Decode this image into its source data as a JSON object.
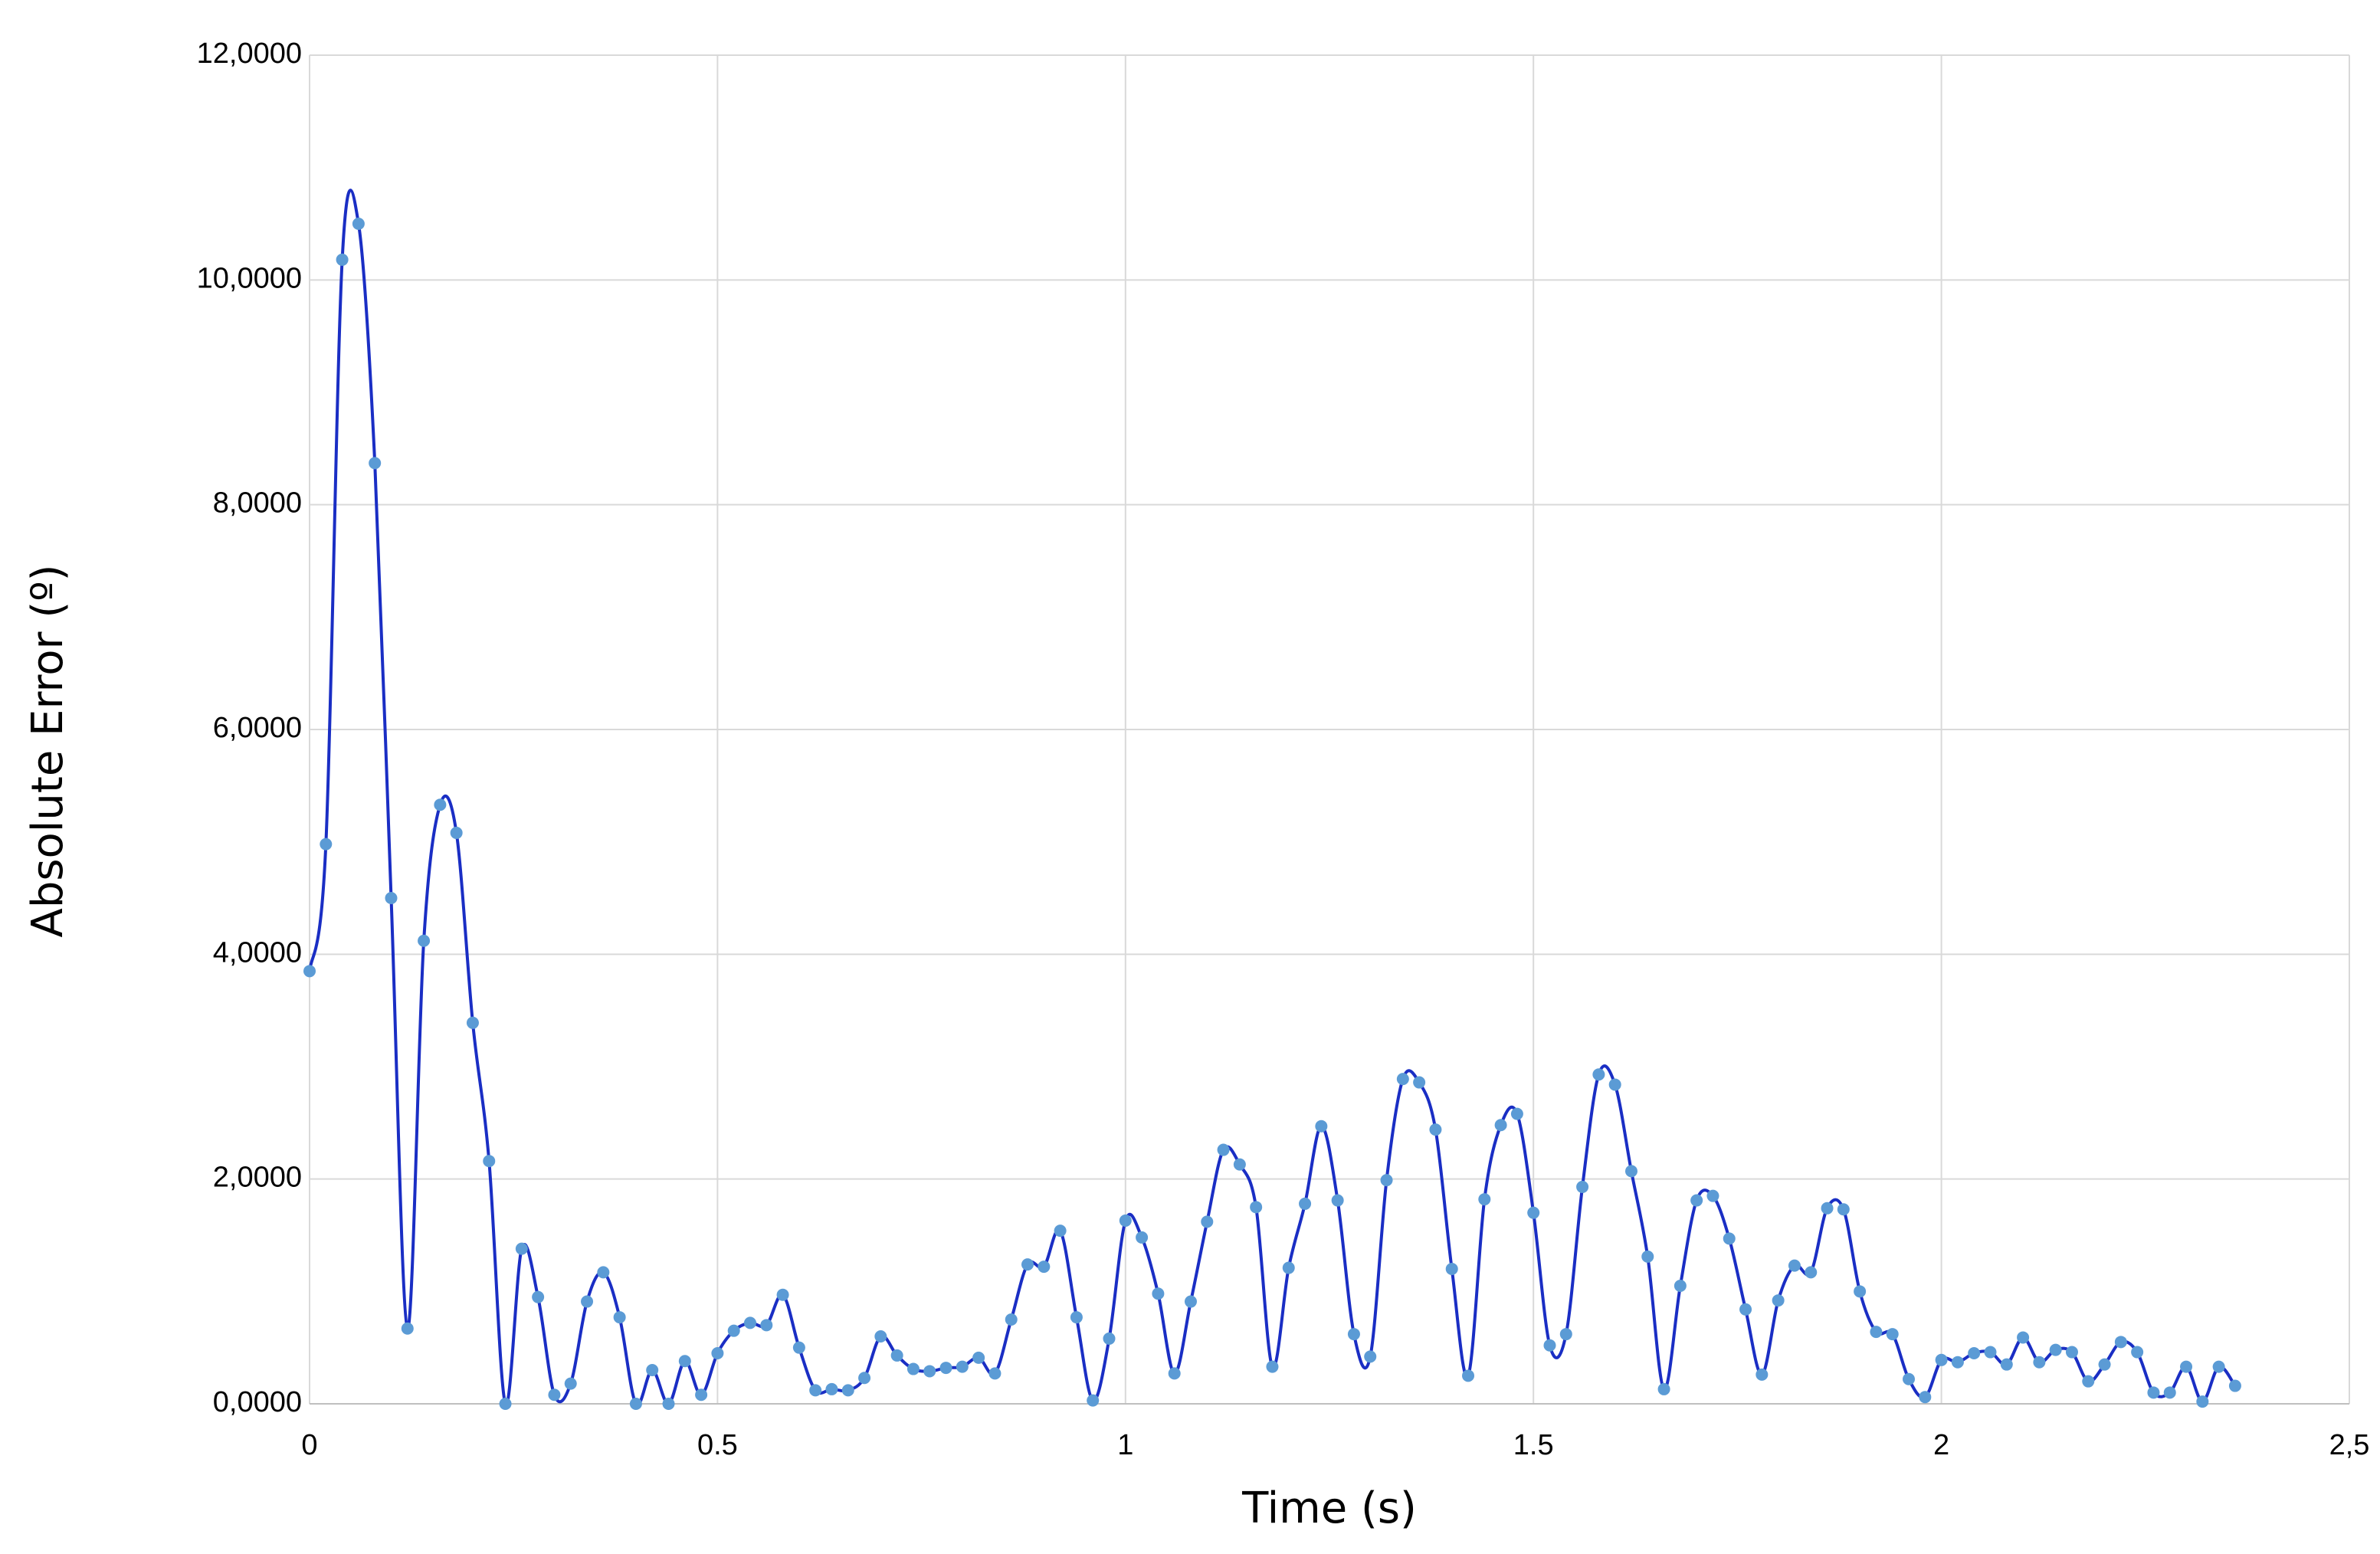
{
  "chart_data": {
    "type": "line",
    "xlabel": "Time (s)",
    "ylabel": "Absolute Error (º)",
    "x": [
      0,
      0.02,
      0.04,
      0.06,
      0.08,
      0.1,
      0.12,
      0.14,
      0.16,
      0.18,
      0.2,
      0.22,
      0.24,
      0.26,
      0.28,
      0.3,
      0.32,
      0.34,
      0.36,
      0.38,
      0.4,
      0.42,
      0.44,
      0.46,
      0.48,
      0.5,
      0.52,
      0.54,
      0.56,
      0.58,
      0.6,
      0.62,
      0.64,
      0.66,
      0.68,
      0.7,
      0.72,
      0.74,
      0.76,
      0.78,
      0.8,
      0.82,
      0.84,
      0.86,
      0.88,
      0.9,
      0.92,
      0.94,
      0.96,
      0.98,
      1,
      1.02,
      1.04,
      1.06,
      1.08,
      1.1,
      1.12,
      1.14,
      1.16,
      1.18,
      1.2,
      1.22,
      1.24,
      1.26,
      1.28,
      1.3,
      1.32,
      1.34,
      1.36,
      1.38,
      1.4,
      1.42,
      1.44,
      1.46,
      1.48,
      1.5,
      1.52,
      1.54,
      1.56,
      1.58,
      1.6,
      1.62,
      1.64,
      1.66,
      1.68,
      1.7,
      1.72,
      1.74,
      1.76,
      1.78,
      1.8,
      1.82,
      1.84,
      1.86,
      1.88,
      1.9,
      1.92,
      1.94,
      1.96,
      1.98,
      2,
      2.02,
      2.04,
      2.06,
      2.08,
      2.1,
      2.12,
      2.14,
      2.16,
      2.18,
      2.2,
      2.22,
      2.24,
      2.26,
      2.28,
      2.3,
      2.32,
      2.34,
      2.36
    ],
    "values": [
      3.85,
      4.98,
      10.18,
      10.5,
      8.37,
      4.5,
      0.67,
      4.12,
      5.33,
      5.08,
      3.39,
      2.16,
      0,
      1.38,
      0.95,
      0.08,
      0.18,
      0.91,
      1.17,
      0.77,
      0,
      0.3,
      0,
      0.38,
      0.08,
      0.45,
      0.65,
      0.72,
      0.7,
      0.97,
      0.5,
      0.12,
      0.13,
      0.12,
      0.23,
      0.6,
      0.43,
      0.31,
      0.29,
      0.32,
      0.33,
      0.41,
      0.27,
      0.75,
      1.24,
      1.22,
      1.54,
      0.77,
      0.03,
      0.58,
      1.63,
      1.48,
      0.98,
      0.27,
      0.91,
      1.62,
      2.26,
      2.13,
      1.75,
      0.33,
      1.21,
      1.78,
      2.47,
      1.81,
      0.62,
      0.42,
      1.99,
      2.89,
      2.86,
      2.44,
      1.2,
      0.25,
      1.82,
      2.48,
      2.58,
      1.7,
      0.52,
      0.62,
      1.93,
      2.93,
      2.84,
      2.07,
      1.31,
      0.13,
      1.05,
      1.81,
      1.85,
      1.47,
      0.84,
      0.26,
      0.92,
      1.23,
      1.17,
      1.74,
      1.73,
      1,
      0.64,
      0.62,
      0.22,
      0.06,
      0.39,
      0.37,
      0.45,
      0.46,
      0.35,
      0.59,
      0.37,
      0.48,
      0.46,
      0.2,
      0.35,
      0.55,
      0.46,
      0.1,
      0.1,
      0.33,
      0.02,
      0.33,
      0.16
    ],
    "color": "#1a2ec4",
    "marker_color": "#5b9bd5",
    "xlim": [
      0,
      2.5
    ],
    "xticks": [
      0,
      0.5,
      1,
      1.5,
      2,
      {
        "value": 2.5,
        "label": "2,5"
      }
    ],
    "ylim": [
      0,
      12
    ],
    "yticks": [
      {
        "value": 0,
        "label": "0,0000"
      },
      {
        "value": 2,
        "label": "2,0000"
      },
      {
        "value": 4,
        "label": "4,0000"
      },
      {
        "value": 6,
        "label": "6,0000"
      },
      {
        "value": 8,
        "label": "8,0000"
      },
      {
        "value": 10,
        "label": "10,0000"
      },
      {
        "value": 12,
        "label": "12,0000"
      }
    ],
    "grid": true
  }
}
